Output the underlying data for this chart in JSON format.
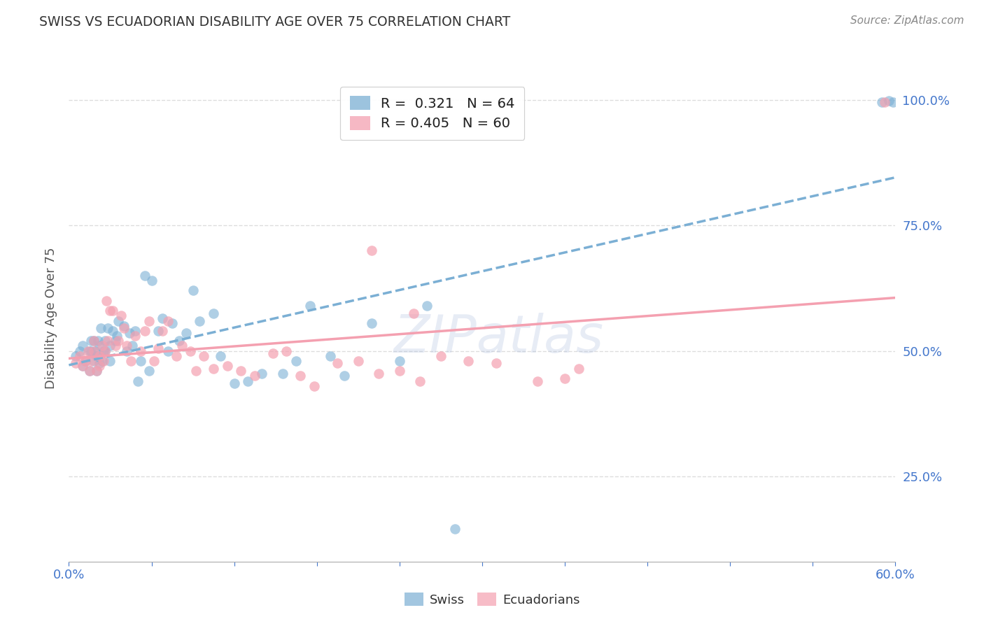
{
  "title": "SWISS VS ECUADORIAN DISABILITY AGE OVER 75 CORRELATION CHART",
  "source": "Source: ZipAtlas.com",
  "ylabel": "Disability Age Over 75",
  "ytick_labels": [
    "25.0%",
    "50.0%",
    "75.0%",
    "100.0%"
  ],
  "ytick_values": [
    0.25,
    0.5,
    0.75,
    1.0
  ],
  "xmin": 0.0,
  "xmax": 0.6,
  "ymin": 0.08,
  "ymax": 1.05,
  "swiss_color": "#7BAFD4",
  "ecuadorian_color": "#F4A0B0",
  "swiss_R": 0.321,
  "swiss_N": 64,
  "ecuadorian_R": 0.405,
  "ecuadorian_N": 60,
  "legend_label_swiss": "Swiss",
  "legend_label_ecuadorian": "Ecuadorians",
  "watermark": "ZIPatlas",
  "swiss_points_x": [
    0.005,
    0.008,
    0.01,
    0.01,
    0.012,
    0.015,
    0.015,
    0.016,
    0.016,
    0.018,
    0.018,
    0.019,
    0.02,
    0.02,
    0.021,
    0.022,
    0.022,
    0.023,
    0.024,
    0.025,
    0.026,
    0.026,
    0.028,
    0.03,
    0.03,
    0.032,
    0.034,
    0.035,
    0.036,
    0.04,
    0.042,
    0.044,
    0.046,
    0.048,
    0.05,
    0.052,
    0.055,
    0.058,
    0.06,
    0.065,
    0.068,
    0.072,
    0.075,
    0.08,
    0.085,
    0.09,
    0.095,
    0.105,
    0.11,
    0.12,
    0.13,
    0.14,
    0.155,
    0.165,
    0.175,
    0.19,
    0.2,
    0.22,
    0.24,
    0.26,
    0.28,
    0.59,
    0.595,
    0.598
  ],
  "swiss_points_y": [
    0.49,
    0.5,
    0.47,
    0.51,
    0.48,
    0.46,
    0.5,
    0.52,
    0.5,
    0.48,
    0.52,
    0.5,
    0.46,
    0.49,
    0.52,
    0.475,
    0.51,
    0.545,
    0.48,
    0.5,
    0.52,
    0.5,
    0.545,
    0.51,
    0.48,
    0.54,
    0.52,
    0.53,
    0.56,
    0.55,
    0.5,
    0.535,
    0.51,
    0.54,
    0.44,
    0.48,
    0.65,
    0.46,
    0.64,
    0.54,
    0.565,
    0.5,
    0.555,
    0.52,
    0.535,
    0.62,
    0.56,
    0.575,
    0.49,
    0.435,
    0.44,
    0.455,
    0.455,
    0.48,
    0.59,
    0.49,
    0.45,
    0.555,
    0.48,
    0.59,
    0.145,
    0.995,
    0.998,
    0.995
  ],
  "ecuadorian_points_x": [
    0.005,
    0.008,
    0.01,
    0.012,
    0.014,
    0.015,
    0.016,
    0.018,
    0.018,
    0.02,
    0.022,
    0.022,
    0.024,
    0.025,
    0.026,
    0.027,
    0.028,
    0.03,
    0.032,
    0.034,
    0.036,
    0.038,
    0.04,
    0.042,
    0.045,
    0.048,
    0.052,
    0.055,
    0.058,
    0.062,
    0.065,
    0.068,
    0.072,
    0.078,
    0.082,
    0.088,
    0.092,
    0.098,
    0.105,
    0.115,
    0.125,
    0.135,
    0.148,
    0.158,
    0.168,
    0.178,
    0.195,
    0.21,
    0.225,
    0.24,
    0.255,
    0.27,
    0.29,
    0.31,
    0.34,
    0.36,
    0.22,
    0.25,
    0.37,
    0.592
  ],
  "ecuadorian_points_y": [
    0.475,
    0.49,
    0.47,
    0.48,
    0.5,
    0.46,
    0.48,
    0.5,
    0.52,
    0.46,
    0.47,
    0.49,
    0.51,
    0.48,
    0.5,
    0.6,
    0.52,
    0.58,
    0.58,
    0.51,
    0.52,
    0.57,
    0.545,
    0.51,
    0.48,
    0.53,
    0.5,
    0.54,
    0.56,
    0.48,
    0.505,
    0.54,
    0.56,
    0.49,
    0.51,
    0.5,
    0.46,
    0.49,
    0.465,
    0.47,
    0.46,
    0.45,
    0.495,
    0.5,
    0.45,
    0.43,
    0.475,
    0.48,
    0.455,
    0.46,
    0.44,
    0.49,
    0.48,
    0.475,
    0.44,
    0.445,
    0.7,
    0.575,
    0.465,
    0.995
  ],
  "grid_color": "#DDDDDD",
  "background_color": "#FFFFFF",
  "xtick_positions": [
    0.0,
    0.06,
    0.12,
    0.18,
    0.24,
    0.3,
    0.36,
    0.42,
    0.48,
    0.54,
    0.6
  ]
}
